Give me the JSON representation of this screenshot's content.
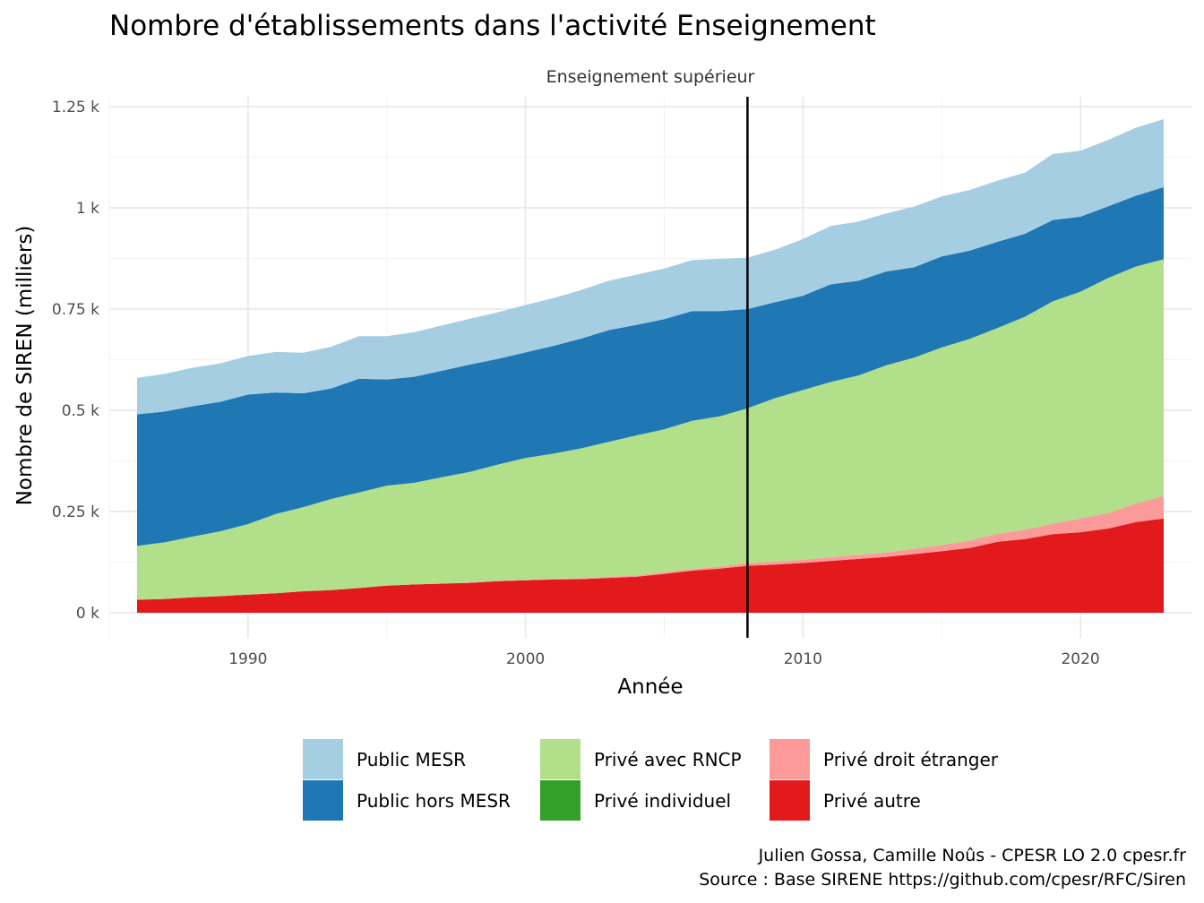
{
  "chart_data": {
    "type": "area",
    "stacked": true,
    "title": "Nombre d'établissements dans l'activité Enseignement",
    "facet_label": "Enseignement supérieur",
    "xlabel": "Année",
    "ylabel": "Nombre de SIREN (milliers)",
    "xlim": [
      1985,
      2024
    ],
    "ylim": [
      0,
      1.25
    ],
    "x_ticks": [
      1990,
      2000,
      2010,
      2020
    ],
    "x_tick_labels": [
      "1990",
      "2000",
      "2010",
      "2020"
    ],
    "y_ticks": [
      0,
      0.25,
      0.5,
      0.75,
      1,
      1.25
    ],
    "y_tick_labels": [
      "0 k",
      "0.25 k",
      "0.5 k",
      "0.75 k",
      "1 k",
      "1.25 k"
    ],
    "grid": true,
    "vline": 2008,
    "legend_position": "bottom",
    "x": [
      1986,
      1987,
      1988,
      1989,
      1990,
      1991,
      1992,
      1993,
      1994,
      1995,
      1996,
      1997,
      1998,
      1999,
      2000,
      2001,
      2002,
      2003,
      2004,
      2005,
      2006,
      2007,
      2008,
      2009,
      2010,
      2011,
      2012,
      2013,
      2014,
      2015,
      2016,
      2017,
      2018,
      2019,
      2020,
      2021,
      2022,
      2023
    ],
    "series": [
      {
        "name": "Privé autre",
        "color": "#e31a1c",
        "values": [
          0.032,
          0.034,
          0.038,
          0.041,
          0.045,
          0.048,
          0.053,
          0.056,
          0.061,
          0.067,
          0.07,
          0.072,
          0.074,
          0.078,
          0.08,
          0.082,
          0.083,
          0.086,
          0.089,
          0.096,
          0.104,
          0.109,
          0.116,
          0.119,
          0.123,
          0.128,
          0.133,
          0.138,
          0.145,
          0.152,
          0.16,
          0.175,
          0.182,
          0.194,
          0.199,
          0.208,
          0.224,
          0.233
        ]
      },
      {
        "name": "Privé droit étranger",
        "color": "#fb9a99",
        "values": [
          0.0,
          0.0,
          0.0,
          0.0,
          0.0,
          0.0,
          0.0,
          0.0,
          0.0,
          0.0,
          0.0,
          0.0,
          0.001,
          0.001,
          0.001,
          0.002,
          0.002,
          0.003,
          0.003,
          0.004,
          0.004,
          0.005,
          0.006,
          0.007,
          0.008,
          0.009,
          0.01,
          0.011,
          0.013,
          0.015,
          0.018,
          0.02,
          0.023,
          0.026,
          0.034,
          0.038,
          0.046,
          0.055
        ]
      },
      {
        "name": "Privé individuel",
        "color": "#33a02c",
        "values": [
          0.0,
          0.0,
          0.0,
          0.0,
          0.0,
          0.0,
          0.0,
          0.0,
          0.0,
          0.0,
          0.0,
          0.0,
          0.0,
          0.0,
          0.0,
          0.0,
          0.0,
          0.0,
          0.0,
          0.0,
          0.0,
          0.0,
          0.0,
          0.0,
          0.0,
          0.0,
          0.0,
          0.0,
          0.0,
          0.0,
          0.0,
          0.0,
          0.0,
          0.0,
          0.0,
          0.0,
          0.0,
          0.0
        ]
      },
      {
        "name": "Privé avec RNCP",
        "color": "#b2df8a",
        "values": [
          0.133,
          0.14,
          0.15,
          0.16,
          0.174,
          0.196,
          0.208,
          0.225,
          0.236,
          0.247,
          0.251,
          0.263,
          0.273,
          0.287,
          0.301,
          0.309,
          0.321,
          0.333,
          0.346,
          0.353,
          0.366,
          0.371,
          0.383,
          0.404,
          0.419,
          0.433,
          0.443,
          0.462,
          0.472,
          0.488,
          0.498,
          0.508,
          0.526,
          0.549,
          0.56,
          0.581,
          0.585,
          0.585
        ]
      },
      {
        "name": "Public hors MESR",
        "color": "#1f78b4",
        "values": [
          0.325,
          0.323,
          0.322,
          0.32,
          0.32,
          0.3,
          0.281,
          0.273,
          0.281,
          0.262,
          0.262,
          0.263,
          0.265,
          0.261,
          0.261,
          0.266,
          0.271,
          0.276,
          0.273,
          0.272,
          0.271,
          0.26,
          0.245,
          0.237,
          0.233,
          0.241,
          0.234,
          0.232,
          0.223,
          0.225,
          0.218,
          0.213,
          0.205,
          0.201,
          0.185,
          0.177,
          0.175,
          0.178
        ]
      },
      {
        "name": "Public MESR",
        "color": "#a6cee3",
        "values": [
          0.09,
          0.093,
          0.095,
          0.095,
          0.095,
          0.1,
          0.1,
          0.103,
          0.105,
          0.107,
          0.11,
          0.112,
          0.113,
          0.115,
          0.117,
          0.118,
          0.12,
          0.122,
          0.124,
          0.125,
          0.126,
          0.129,
          0.127,
          0.13,
          0.14,
          0.144,
          0.146,
          0.143,
          0.15,
          0.148,
          0.15,
          0.151,
          0.151,
          0.163,
          0.163,
          0.164,
          0.168,
          0.168
        ]
      }
    ],
    "legend": [
      [
        "Public MESR",
        "Privé avec RNCP",
        "Privé droit étranger"
      ],
      [
        "Public hors MESR",
        "Privé individuel",
        "Privé autre"
      ]
    ],
    "caption": [
      "Julien Gossa, Camille Noûs - CPESR LO 2.0 cpesr.fr",
      "Source : Base SIRENE https://github.com/cpesr/RFC/Siren"
    ]
  }
}
